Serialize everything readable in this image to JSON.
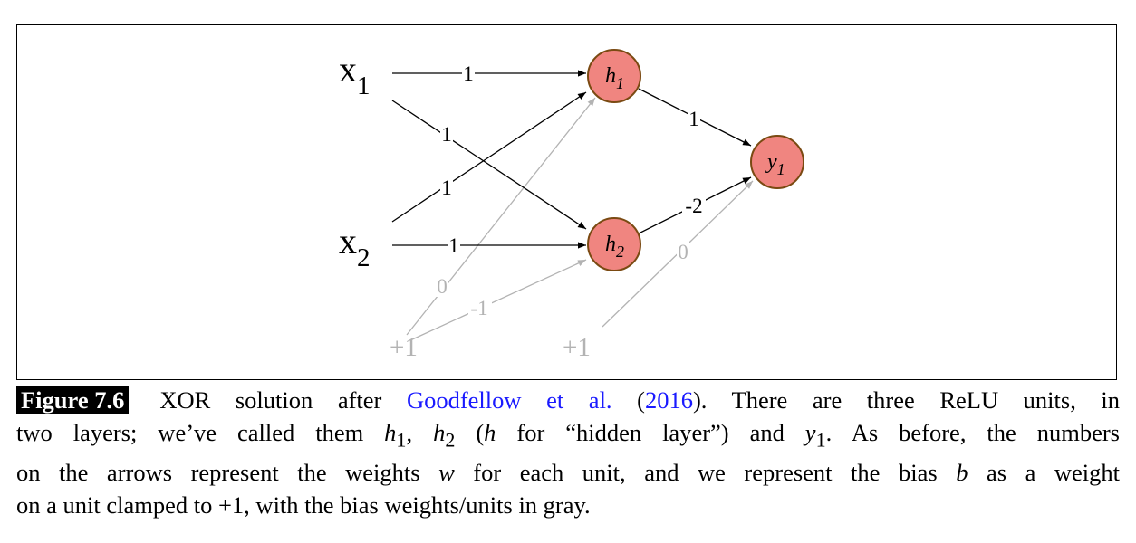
{
  "diagram": {
    "inputs": {
      "x1": {
        "base": "x",
        "sub": "1"
      },
      "x2": {
        "base": "x",
        "sub": "2"
      }
    },
    "hidden_units": {
      "h1": {
        "base": "h",
        "sub": "1"
      },
      "h2": {
        "base": "h",
        "sub": "2"
      }
    },
    "output_unit": {
      "base": "y",
      "sub": "1"
    },
    "bias_units": {
      "first": "+1",
      "second": "+1"
    },
    "weights": {
      "x1_h1": "1",
      "x1_h2": "1",
      "x2_h1": "1",
      "x2_h2": "1",
      "h1_y1": "1",
      "h2_y1": "-2"
    },
    "bias_weights": {
      "b1_h1": "0",
      "b1_h2": "-1",
      "b2_y1": "0"
    },
    "colors": {
      "node_fill": "#f08580",
      "node_stroke": "#7a4a12",
      "bias_gray": "#b3b3b3",
      "edge": "#000000"
    }
  },
  "caption": {
    "figure_label": "Figure 7.6",
    "p1": "XOR solution after ",
    "link_author": "Goodfellow et al.",
    "p2": " (",
    "link_year": "2016",
    "p3": "). There are three ReLU units, in",
    "l2_a": "two layers; we’ve called them ",
    "l2_h": "h",
    "l2_1": "1",
    "l2_b": ", ",
    "l2_h2": "h",
    "l2_2": "2",
    "l2_c": " (",
    "l2_h3": "h",
    "l2_d": " for “hidden layer”) and ",
    "l2_y": "y",
    "l2_y1": "1",
    "l2_e": ". As before, the numbers",
    "l3_a": "on the arrows represent the weights ",
    "l3_w": "w",
    "l3_b": " for each unit, and we represent the bias ",
    "l3_bb": "b",
    "l3_c": " as a weight",
    "l4": "on a unit clamped to +1, with the bias weights/units in gray."
  }
}
